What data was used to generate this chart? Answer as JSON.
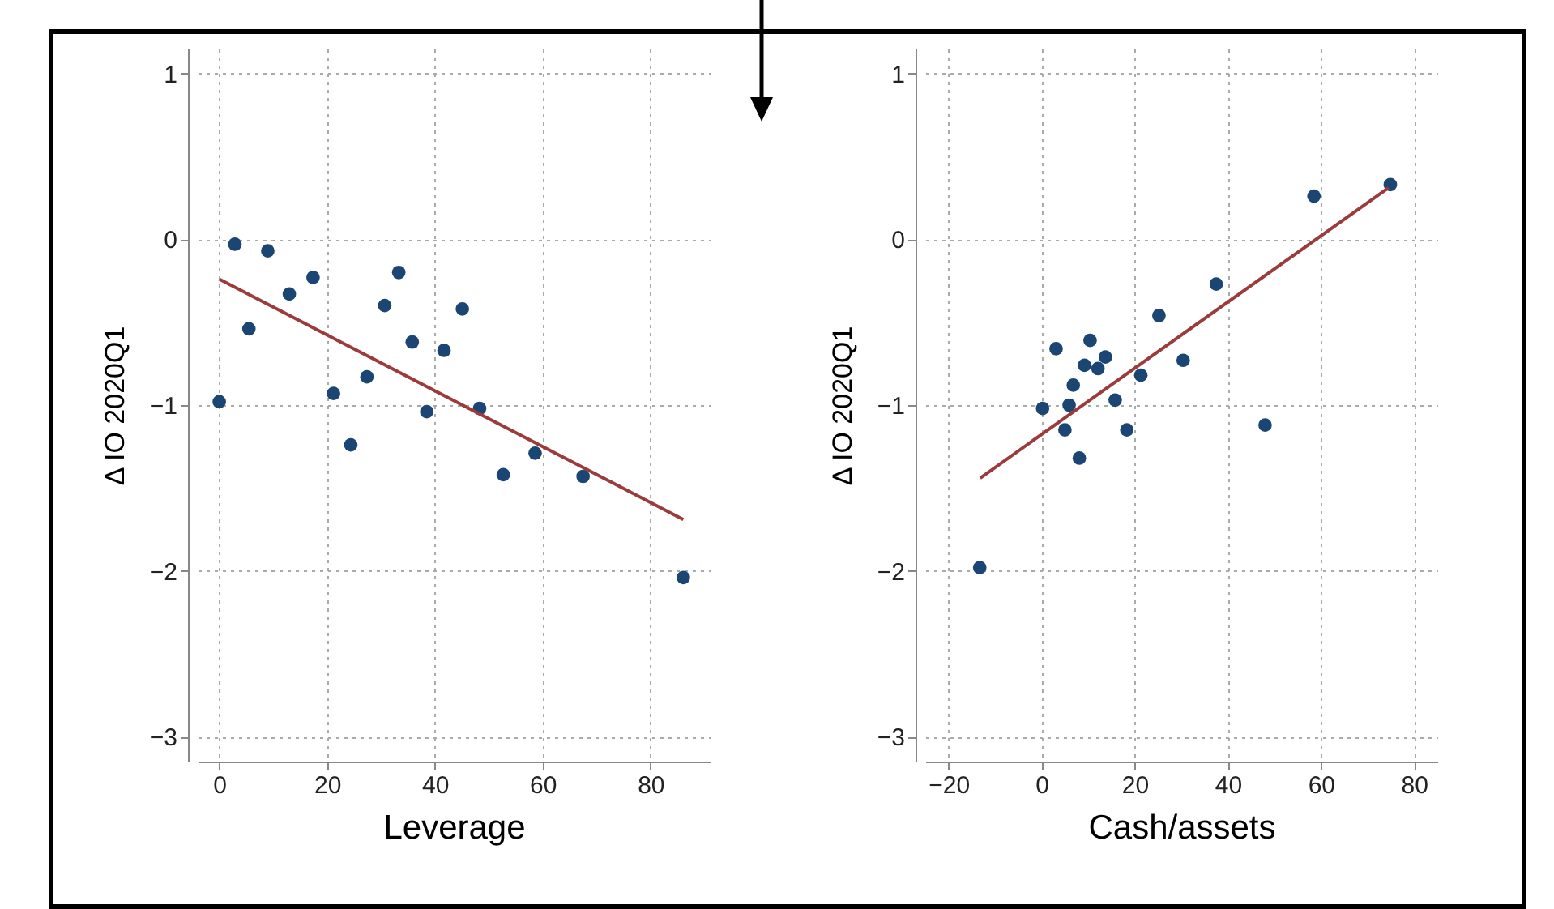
{
  "chart_data": [
    {
      "type": "scatter",
      "xlabel": "Leverage",
      "ylabel": "Δ IO 2020Q1",
      "xlim": [
        -4,
        91
      ],
      "ylim": [
        -3.15,
        1.15
      ],
      "xticks": [
        0,
        20,
        40,
        60,
        80
      ],
      "yticks": [
        -3,
        -2,
        -1,
        0,
        1
      ],
      "grid": true,
      "series": [
        {
          "marker": "circle",
          "color": "#1b4673",
          "x": [
            0,
            2.9,
            5.5,
            9.0,
            13.0,
            17.4,
            21.2,
            24.4,
            27.4,
            30.7,
            33.3,
            35.8,
            38.5,
            41.7,
            45.1,
            48.3,
            52.7,
            58.6,
            67.5,
            86.1
          ],
          "values": [
            -0.98,
            -0.03,
            -0.54,
            -0.07,
            -0.33,
            -0.23,
            -0.93,
            -1.24,
            -0.83,
            -0.4,
            -0.2,
            -0.62,
            -1.04,
            -0.67,
            -0.42,
            -1.02,
            -1.42,
            -1.29,
            -1.43,
            -2.04
          ]
        },
        {
          "type": "line",
          "color": "#9b3b3b",
          "x": [
            0,
            86.1
          ],
          "values": [
            -0.24,
            -1.69
          ]
        }
      ]
    },
    {
      "type": "scatter",
      "xlabel": "Cash/assets",
      "ylabel": "Δ IO 2020Q1",
      "xlim": [
        -25,
        85
      ],
      "ylim": [
        -3.15,
        1.15
      ],
      "xticks": [
        -20,
        0,
        20,
        40,
        60,
        80
      ],
      "yticks": [
        -3,
        -2,
        -1,
        0,
        1
      ],
      "grid": true,
      "series": [
        {
          "marker": "circle",
          "color": "#1b4673",
          "x": [
            -13.3,
            0.2,
            3.1,
            5.0,
            5.9,
            6.8,
            8.1,
            9.2,
            10.4,
            12.1,
            13.7,
            15.8,
            18.3,
            21.3,
            25.2,
            30.4,
            37.5,
            48.0,
            58.5,
            74.9
          ],
          "values": [
            -1.98,
            -1.02,
            -0.66,
            -1.15,
            -1.0,
            -0.88,
            -1.32,
            -0.76,
            -0.61,
            -0.78,
            -0.71,
            -0.97,
            -1.15,
            -0.82,
            -0.46,
            -0.73,
            -0.27,
            -1.12,
            0.26,
            0.33
          ]
        },
        {
          "type": "line",
          "color": "#9b3b3b",
          "x": [
            -13.2,
            74.5
          ],
          "values": [
            -1.44,
            0.31
          ]
        }
      ]
    }
  ]
}
